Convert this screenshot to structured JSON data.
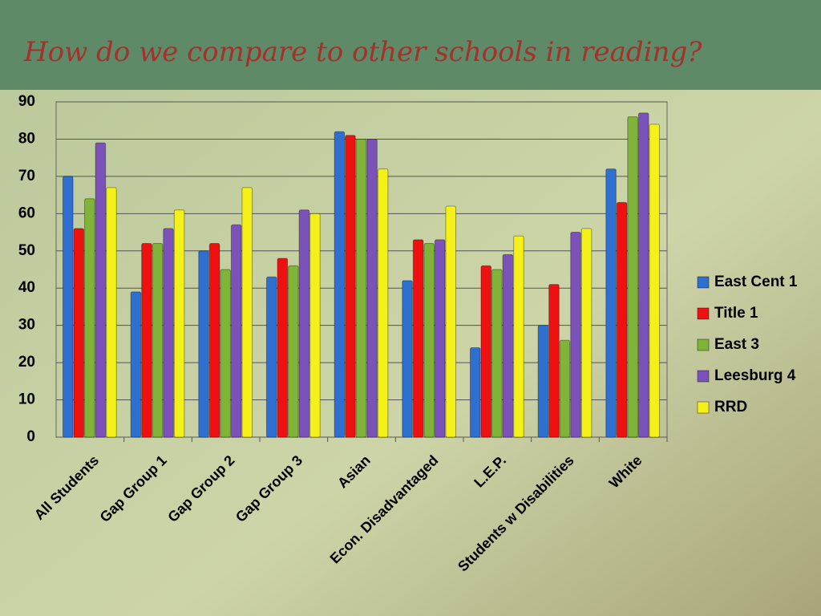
{
  "chart_data": {
    "type": "bar",
    "title": "How do we compare to other schools in reading?",
    "categories": [
      "All Students",
      "Gap Group 1",
      "Gap Group 2",
      "Gap Group 3",
      "Asian",
      "Econ. Disadvantaged",
      "L.E.P.",
      "Students w Disabilities",
      "White"
    ],
    "series": [
      {
        "name": "East Cent 1",
        "color": "#2e6fd0",
        "values": [
          70,
          39,
          50,
          43,
          82,
          42,
          24,
          30,
          72
        ]
      },
      {
        "name": "Title 1",
        "color": "#ee1111",
        "values": [
          56,
          52,
          52,
          48,
          81,
          53,
          46,
          41,
          63
        ]
      },
      {
        "name": "East 3",
        "color": "#7fb33a",
        "values": [
          64,
          52,
          45,
          46,
          80,
          52,
          45,
          26,
          86
        ]
      },
      {
        "name": "Leesburg 4",
        "color": "#7a52b8",
        "values": [
          79,
          56,
          57,
          61,
          80,
          53,
          49,
          55,
          87
        ]
      },
      {
        "name": "RRD",
        "color": "#f4f01a",
        "values": [
          67,
          61,
          67,
          60,
          72,
          62,
          54,
          56,
          84
        ]
      }
    ],
    "ylim": [
      0,
      90
    ],
    "yticks": [
      0,
      10,
      20,
      30,
      40,
      50,
      60,
      70,
      80,
      90
    ],
    "grid": true,
    "legend": "right"
  }
}
